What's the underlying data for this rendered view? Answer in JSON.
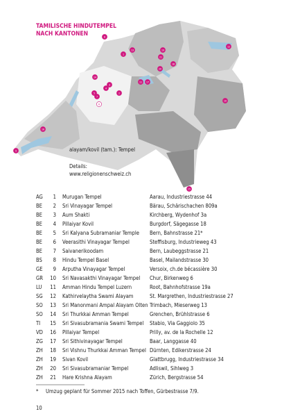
{
  "map": {
    "title": [
      "TAMILISCHE HINDUTEMPEL",
      "NACH KANTONEN"
    ],
    "legend": "alayam/kovil (tam.): Tempel",
    "details_label": "Details:",
    "details_url": "www.religionenschweiz.ch"
  },
  "table": {
    "rows": [
      [
        "AG",
        "1",
        "Murugan Tempel",
        "Aarau, Industriestrasse 44"
      ],
      [
        "BE",
        "2",
        "Sri Vinayagar Tempel",
        "Bärau, Schärischachen 809a"
      ],
      [
        "BE",
        "3",
        "Aum Shakti",
        "Kirchberg, Wydenhof 3a"
      ],
      [
        "BE",
        "4",
        "Pillaiyar Kovil",
        "Burgdorf, Sägegasse 18"
      ],
      [
        "BE",
        "5",
        "Sri Kalyana Subramaniar Temple",
        "Bern, Bahnstrasse 21*"
      ],
      [
        "BE",
        "6",
        "Veerasithi Vinayagar Tempel",
        "Steffisburg, Industrieweg 43"
      ],
      [
        "BE",
        "7",
        "Saivanerikoodam",
        "Bern, Laubeggstrasse 21"
      ],
      [
        "BS",
        "8",
        "Hindu Tempel Basel",
        "Basel, Mailandstrasse 30"
      ],
      [
        "GE",
        "9",
        "Arputha Vinayagar Tempel",
        "Versoix, ch.de bécassière 30"
      ],
      [
        "GR",
        "10",
        "Sri Navasakthi Vinayagar Tempel",
        "Chur, Birkenweg 6"
      ],
      [
        "LU",
        "11",
        "Amman Hindu Tempel Luzern",
        "Root, Bahnhofstrasse 19a"
      ],
      [
        "SG",
        "12",
        "Kathirvelaytha Swami Alayam",
        "St. Margrethen, Industriestrasse 27"
      ],
      [
        "SO",
        "13",
        "Sri Manonmani Ampal Alayam Olten",
        "Trimbach, Mieserweg 13"
      ],
      [
        "SO",
        "14",
        "Sri Thurkkai Amman Tempel",
        "Grenchen, Brühlstrasse 6"
      ],
      [
        "TI",
        "15",
        "Sri Sivasubramania Swami Tempel",
        "Stabio, Via Gaggiolo 35"
      ],
      [
        "VD",
        "16",
        "Pillaiyar Tempel",
        "Prilly, av. de la Rochelle 12"
      ],
      [
        "ZG",
        "17",
        "Sri Sithivinayagar Tempel",
        "Baar, Langgasse 40"
      ],
      [
        "ZH",
        "18",
        "Sri Vishnu Thurkkai Amman Tempel",
        "Dürnten, Edikerstrasse 24"
      ],
      [
        "ZH",
        "19",
        "Sivan Kovil",
        "Glattbrugg, Industriestrasse 34"
      ],
      [
        "ZH",
        "20",
        "Sri Sivasubramaniar Tempel",
        "Adliswil, Sihlweg 3"
      ],
      [
        "ZH",
        "21",
        "Hare Krishna Alayam",
        "Zürich, Bergstrasse 54"
      ]
    ]
  },
  "footnote": {
    "mark": "*",
    "text": "Umzug geplant für Sommer 2015 nach Toffen, Gürbestrasse 7/9."
  },
  "page_number": "10"
}
